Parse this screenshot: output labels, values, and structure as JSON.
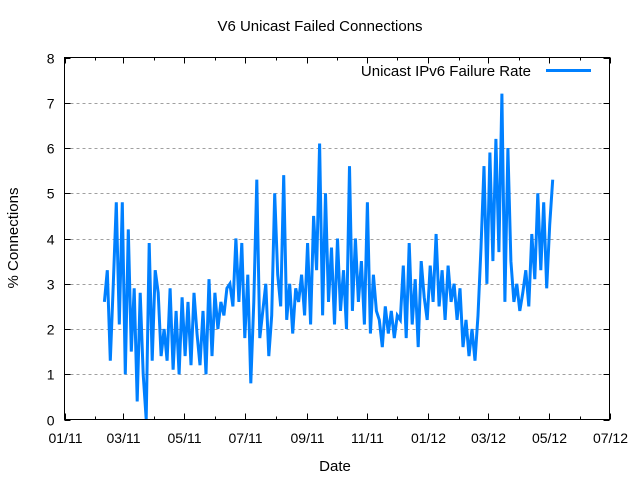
{
  "chart_data": {
    "type": "line",
    "title": "V6 Unicast Failed Connections",
    "xlabel": "Date",
    "ylabel": "% Connections",
    "xlim": [
      "2011-01-01",
      "2012-07-01"
    ],
    "ylim": [
      0,
      8
    ],
    "x_tick_labels": [
      "01/11",
      "03/11",
      "05/11",
      "07/11",
      "09/11",
      "11/11",
      "01/12",
      "03/12",
      "05/12",
      "07/12"
    ],
    "x_tick_dates": [
      "2011-01-01",
      "2011-03-01",
      "2011-05-01",
      "2011-07-01",
      "2011-09-01",
      "2011-11-01",
      "2012-01-01",
      "2012-03-01",
      "2012-05-01",
      "2012-07-01"
    ],
    "y_tick_labels": [
      "0",
      "1",
      "2",
      "3",
      "4",
      "5",
      "6",
      "7",
      "8"
    ],
    "grid": "horizontal dashed",
    "legend_position": "top-right",
    "series": [
      {
        "name": "Unicast IPv6 Failure Rate",
        "color": "#0080ff",
        "x": [
          "2011-02-10",
          "2011-02-13",
          "2011-02-16",
          "2011-02-19",
          "2011-02-22",
          "2011-02-25",
          "2011-02-28",
          "2011-03-03",
          "2011-03-06",
          "2011-03-09",
          "2011-03-12",
          "2011-03-15",
          "2011-03-18",
          "2011-03-21",
          "2011-03-24",
          "2011-03-27",
          "2011-03-30",
          "2011-04-02",
          "2011-04-05",
          "2011-04-08",
          "2011-04-11",
          "2011-04-14",
          "2011-04-17",
          "2011-04-20",
          "2011-04-23",
          "2011-04-26",
          "2011-04-29",
          "2011-05-02",
          "2011-05-05",
          "2011-05-08",
          "2011-05-11",
          "2011-05-14",
          "2011-05-17",
          "2011-05-20",
          "2011-05-23",
          "2011-05-26",
          "2011-05-29",
          "2011-06-01",
          "2011-06-04",
          "2011-06-07",
          "2011-06-10",
          "2011-06-13",
          "2011-06-16",
          "2011-06-19",
          "2011-06-22",
          "2011-06-25",
          "2011-06-28",
          "2011-07-01",
          "2011-07-04",
          "2011-07-07",
          "2011-07-10",
          "2011-07-13",
          "2011-07-16",
          "2011-07-19",
          "2011-07-22",
          "2011-07-25",
          "2011-07-28",
          "2011-07-31",
          "2011-08-03",
          "2011-08-06",
          "2011-08-09",
          "2011-08-12",
          "2011-08-15",
          "2011-08-18",
          "2011-08-21",
          "2011-08-24",
          "2011-08-27",
          "2011-08-30",
          "2011-09-02",
          "2011-09-05",
          "2011-09-08",
          "2011-09-11",
          "2011-09-14",
          "2011-09-17",
          "2011-09-20",
          "2011-09-23",
          "2011-09-26",
          "2011-09-29",
          "2011-10-02",
          "2011-10-05",
          "2011-10-08",
          "2011-10-11",
          "2011-10-14",
          "2011-10-17",
          "2011-10-20",
          "2011-10-23",
          "2011-10-26",
          "2011-10-29",
          "2011-11-01",
          "2011-11-04",
          "2011-11-07",
          "2011-11-10",
          "2011-11-13",
          "2011-11-16",
          "2011-11-19",
          "2011-11-22",
          "2011-11-25",
          "2011-11-28",
          "2011-12-01",
          "2011-12-04",
          "2011-12-07",
          "2011-12-10",
          "2011-12-13",
          "2011-12-16",
          "2011-12-19",
          "2011-12-22",
          "2011-12-25",
          "2011-12-28",
          "2011-12-31",
          "2012-01-03",
          "2012-01-06",
          "2012-01-09",
          "2012-01-12",
          "2012-01-15",
          "2012-01-18",
          "2012-01-21",
          "2012-01-24",
          "2012-01-27",
          "2012-01-30",
          "2012-02-02",
          "2012-02-05",
          "2012-02-08",
          "2012-02-11",
          "2012-02-14",
          "2012-02-17",
          "2012-02-20",
          "2012-02-23",
          "2012-02-26",
          "2012-02-29",
          "2012-03-03",
          "2012-03-06",
          "2012-03-09",
          "2012-03-12",
          "2012-03-15",
          "2012-03-18",
          "2012-03-21",
          "2012-03-24",
          "2012-03-27",
          "2012-03-30",
          "2012-04-02",
          "2012-04-05",
          "2012-04-08",
          "2012-04-11",
          "2012-04-14",
          "2012-04-17",
          "2012-04-20",
          "2012-04-23",
          "2012-04-26",
          "2012-04-29",
          "2012-05-02",
          "2012-05-05"
        ],
        "y": [
          2.6,
          3.3,
          1.3,
          3.0,
          4.8,
          2.1,
          4.8,
          1.0,
          4.2,
          1.5,
          2.9,
          0.4,
          2.8,
          1.0,
          0.0,
          3.9,
          1.3,
          3.3,
          2.8,
          1.4,
          2.0,
          1.3,
          2.9,
          1.1,
          2.4,
          1.0,
          2.7,
          1.4,
          2.6,
          1.2,
          2.8,
          1.9,
          1.2,
          2.4,
          1.0,
          3.1,
          1.4,
          2.8,
          2.0,
          2.6,
          2.3,
          2.9,
          3.0,
          2.5,
          4.0,
          2.6,
          3.9,
          1.8,
          3.2,
          0.8,
          2.6,
          5.3,
          1.8,
          2.4,
          3.0,
          1.4,
          2.3,
          5.0,
          3.2,
          2.5,
          5.4,
          2.2,
          3.0,
          1.9,
          2.9,
          2.6,
          3.2,
          2.3,
          3.9,
          2.1,
          4.5,
          3.3,
          6.1,
          2.3,
          5.0,
          2.6,
          3.8,
          2.1,
          4.0,
          2.4,
          3.3,
          2.0,
          5.6,
          2.4,
          4.0,
          2.6,
          3.5,
          2.1,
          4.8,
          1.9,
          3.2,
          2.4,
          2.2,
          1.6,
          2.5,
          1.9,
          2.4,
          1.8,
          2.3,
          2.2,
          3.4,
          1.8,
          3.9,
          2.1,
          3.1,
          1.6,
          3.5,
          2.7,
          2.2,
          3.4,
          2.6,
          4.1,
          2.5,
          3.3,
          2.2,
          3.4,
          2.6,
          3.0,
          2.2,
          2.9,
          1.6,
          2.2,
          1.4,
          2.0,
          1.3,
          2.3,
          3.8,
          5.6,
          3.0,
          5.9,
          3.5,
          6.2,
          3.7,
          7.2,
          2.6,
          6.0,
          3.5,
          2.6,
          3.0,
          2.4,
          2.8,
          3.3,
          2.5,
          4.1,
          3.1,
          5.0,
          3.3,
          4.8,
          2.9,
          4.3,
          5.3
        ]
      }
    ]
  }
}
